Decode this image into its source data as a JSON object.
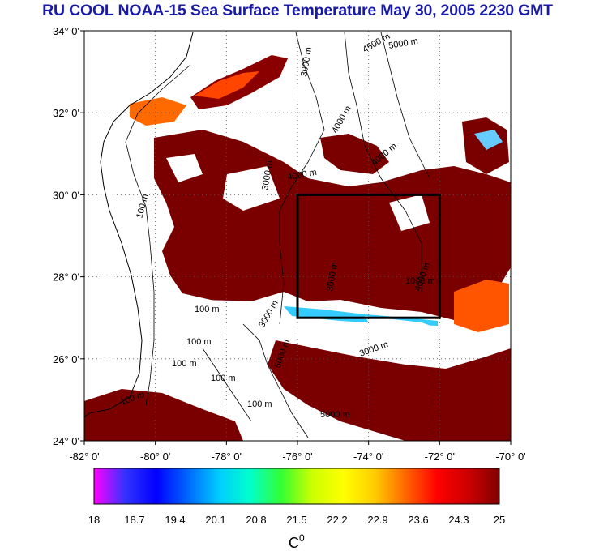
{
  "title": "RU COOL  NOAA-15 Sea Surface Temperature May 30, 2005 2230 GMT",
  "map": {
    "lat_range": [
      24,
      34
    ],
    "lon_range": [
      -82,
      -70
    ],
    "lat_ticks": [
      "34° 0'",
      "32° 0'",
      "30° 0'",
      "28° 0'",
      "26° 0'",
      "24° 0'"
    ],
    "lon_ticks": [
      "-82° 0'",
      "-80° 0'",
      "-78° 0'",
      "-76° 0'",
      "-74° 0'",
      "-72° 0'",
      "-70° 0'"
    ],
    "grid": true,
    "study_box": {
      "lon_min": -76,
      "lon_max": -72,
      "lat_min": 27,
      "lat_max": 30
    },
    "contour_labels": [
      "100 m",
      "100 m",
      "100 m",
      "100 m",
      "100 m",
      "100 m",
      "100 m",
      "3000 m",
      "3000 m",
      "3000 m",
      "3000 m",
      "4000 m",
      "4000 m",
      "4000 m",
      "4000 m",
      "4500 m",
      "5000 m",
      "5000 m",
      "5000 m",
      "1000 m",
      "3000 m"
    ],
    "colors": {
      "land": "#ffffff",
      "sst_high": "#800000",
      "sst_mid": "#ff3300",
      "cloud": "#ffffff"
    }
  },
  "colorbar": {
    "min": 18,
    "max": 25,
    "tick_labels": [
      "18",
      "18.7",
      "19.4",
      "20.1",
      "20.8",
      "21.5",
      "22.2",
      "22.9",
      "23.6",
      "24.3",
      "25"
    ],
    "unit_label": "C",
    "unit_superscript": "0",
    "stops": [
      "#ff00ff",
      "#3333ff",
      "#0000ff",
      "#0066ff",
      "#00ccff",
      "#00ffcc",
      "#33ff33",
      "#ccff00",
      "#ffff00",
      "#ffcc00",
      "#ff6600",
      "#ff0000",
      "#cc0000",
      "#800000"
    ]
  }
}
